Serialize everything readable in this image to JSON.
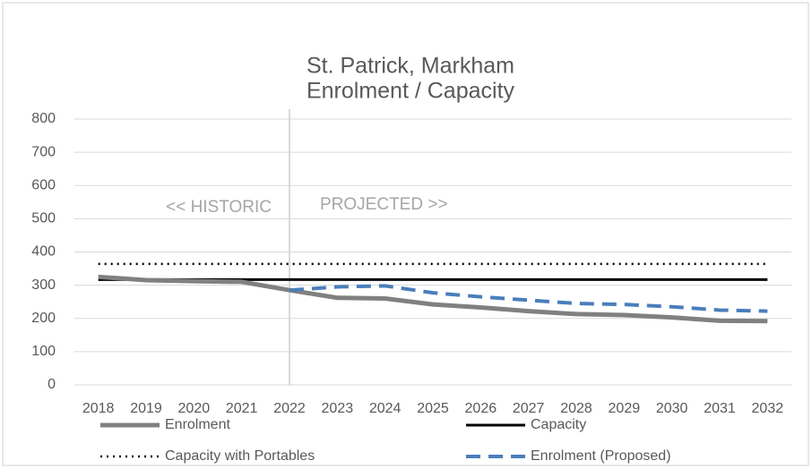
{
  "chart_data": {
    "type": "line",
    "title": "St. Patrick, Markham",
    "subtitle": "Enrolment / Capacity",
    "categories": [
      "2018",
      "2019",
      "2020",
      "2021",
      "2022",
      "2023",
      "2024",
      "2025",
      "2026",
      "2027",
      "2028",
      "2029",
      "2030",
      "2031",
      "2032"
    ],
    "series": [
      {
        "name": "Enrolment",
        "color": "#808080",
        "dash": "solid",
        "values": [
          325,
          315,
          312,
          310,
          285,
          262,
          260,
          242,
          233,
          222,
          213,
          210,
          203,
          193,
          192
        ]
      },
      {
        "name": "Capacity",
        "color": "#000000",
        "dash": "solid",
        "values": [
          317,
          317,
          317,
          317,
          317,
          317,
          317,
          317,
          317,
          317,
          317,
          317,
          317,
          317,
          317
        ]
      },
      {
        "name": "Capacity with Portables",
        "color": "#000000",
        "dash": "dotted",
        "values": [
          364,
          364,
          364,
          364,
          364,
          364,
          364,
          364,
          364,
          364,
          364,
          364,
          364,
          364,
          364
        ]
      },
      {
        "name": "Enrolment (Proposed)",
        "color": "#4a7ebb",
        "dash": "dashed",
        "values": [
          null,
          null,
          null,
          null,
          285,
          295,
          298,
          277,
          265,
          255,
          245,
          242,
          235,
          225,
          222
        ]
      }
    ],
    "annotations": [
      "<< HISTORIC",
      "PROJECTED >>"
    ],
    "ylim": [
      0,
      800
    ],
    "yticks": [
      0,
      100,
      200,
      300,
      400,
      500,
      600,
      700,
      800
    ],
    "grid": true,
    "legend": "bottom"
  }
}
